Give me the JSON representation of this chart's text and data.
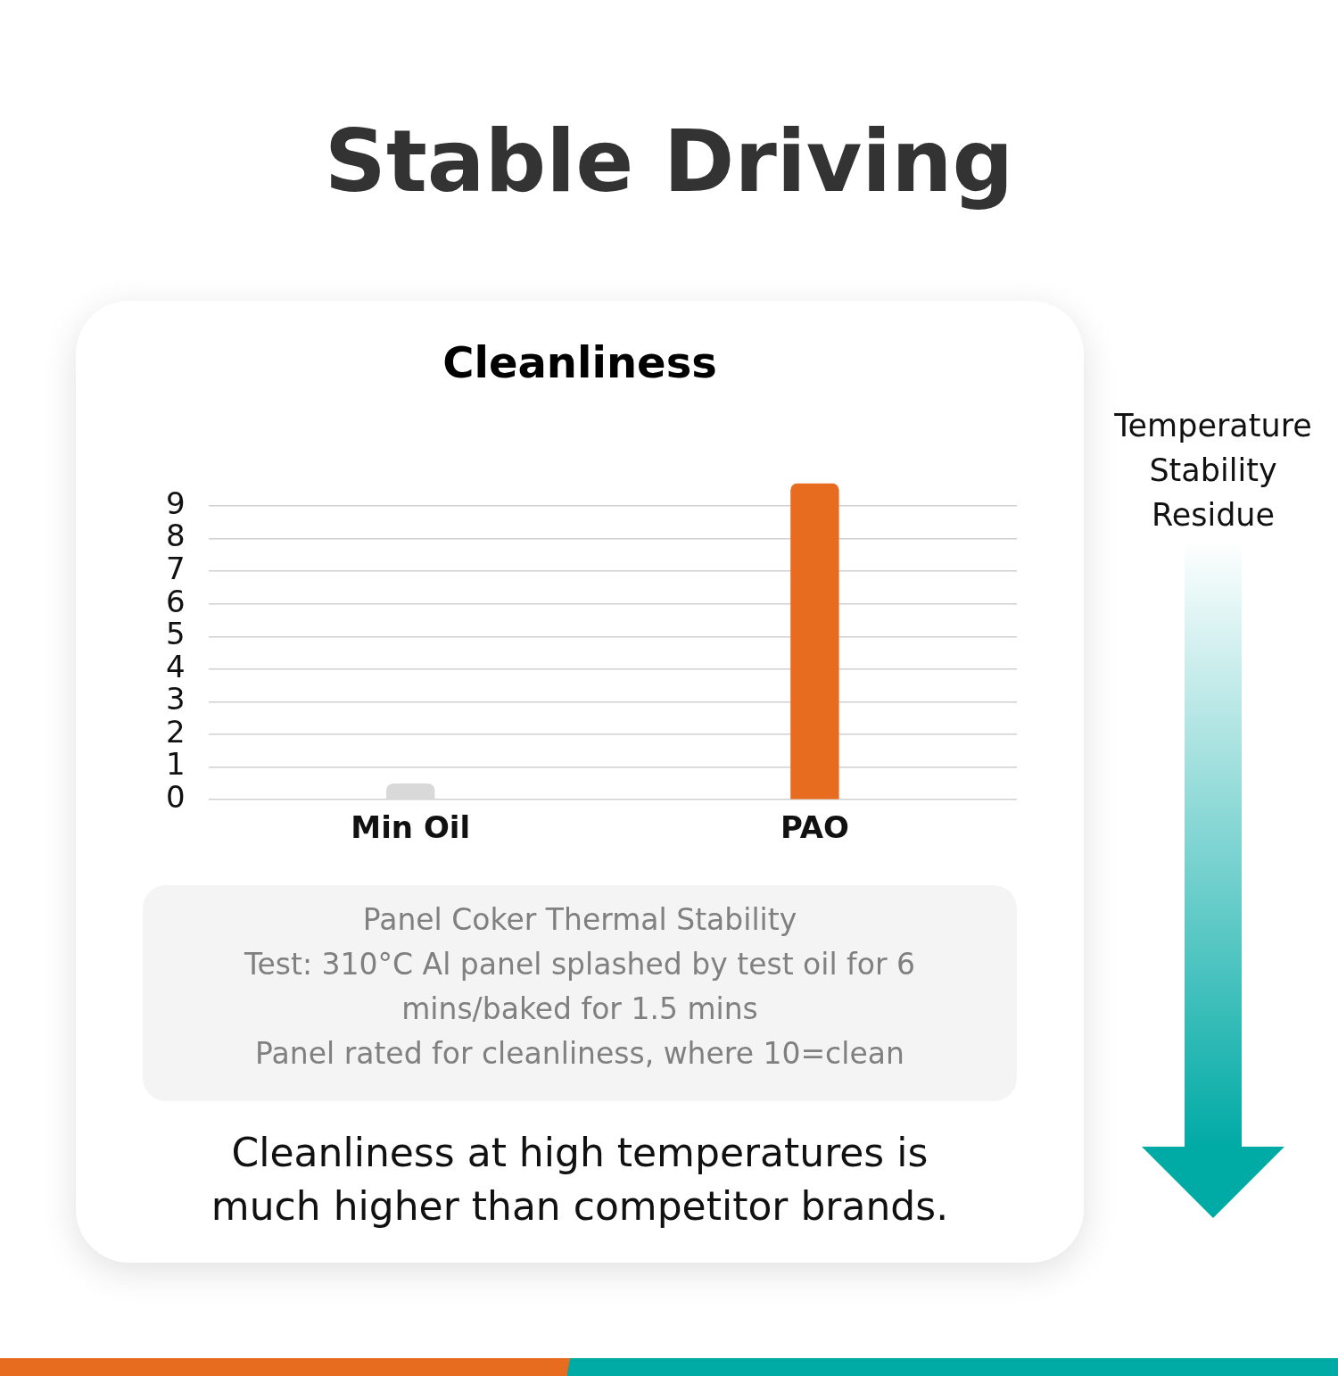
{
  "chart_data": {
    "type": "bar",
    "title": "Stable Driving",
    "subtitle": "Cleanliness",
    "categories": [
      "Min Oil",
      "PAO"
    ],
    "values": [
      0.5,
      9.7
    ],
    "colors": [
      "#d9d9d9",
      "#e86c1f"
    ],
    "ylim": [
      0,
      9.7
    ],
    "yticks": [
      0,
      1,
      2,
      3,
      4,
      5,
      6,
      7,
      8,
      9
    ],
    "grid": "y",
    "annotations": [
      "Panel Coker Thermal Stability\nTest: 310°C Al panel splashed by test oil for 6 mins/baked for 1.5 mins\nPanel rated for cleanliness, where 10=clean",
      "Cleanliness at high temperatures is much higher than competitor brands.",
      "Temperature Stability Residue"
    ]
  }
}
